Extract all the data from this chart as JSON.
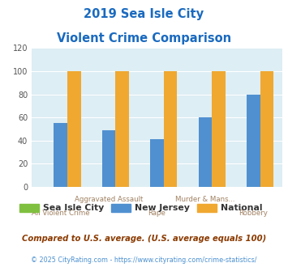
{
  "title_line1": "2019 Sea Isle City",
  "title_line2": "Violent Crime Comparison",
  "categories": [
    "All Violent Crime",
    "Aggravated Assault",
    "Rape",
    "Murder & Mans...",
    "Robbery"
  ],
  "sea_isle_city": [
    0,
    0,
    0,
    0,
    0
  ],
  "new_jersey": [
    55,
    49,
    41,
    60,
    80
  ],
  "national": [
    100,
    100,
    100,
    100,
    100
  ],
  "color_city": "#80c040",
  "color_nj": "#5090d0",
  "color_national": "#f0a830",
  "ylim": [
    0,
    120
  ],
  "yticks": [
    0,
    20,
    40,
    60,
    80,
    100,
    120
  ],
  "legend_labels": [
    "Sea Isle City",
    "New Jersey",
    "National"
  ],
  "footnote1": "Compared to U.S. average. (U.S. average equals 100)",
  "footnote2": "© 2025 CityRating.com - https://www.cityrating.com/crime-statistics/",
  "bg_color": "#ddeef4",
  "title_color": "#1a6abf",
  "footnote1_color": "#8b3a00",
  "footnote2_color": "#4a90d0",
  "bar_width": 0.28
}
